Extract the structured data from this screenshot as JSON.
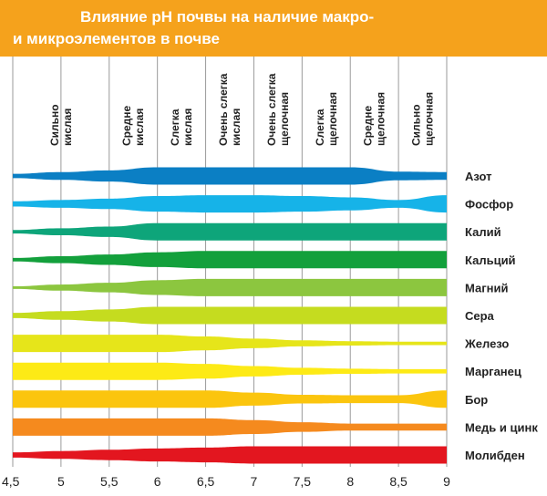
{
  "title_lines": [
    "Влияние pH почвы на наличие макро-",
    "и  микроэлементов в почве"
  ],
  "colors": {
    "header": "#f5a21c",
    "title_text": "#ffffff",
    "grid": "#9a9a9a",
    "text": "#222222"
  },
  "chart_data": {
    "type": "area",
    "xlim": [
      4.5,
      9
    ],
    "x_ticks": [
      "4,5",
      "5",
      "5,5",
      "6",
      "6,5",
      "7",
      "7,5",
      "8",
      "8,5",
      "9"
    ],
    "grid": "vertical",
    "categories": [
      "Сильно кислая",
      "Средне кислая",
      "Слегка кислая",
      "Очень слегка кислая",
      "Очень слегка щелочная",
      "Слегка щелочная",
      "Средне щелочная",
      "Сильно щелочная"
    ],
    "category_lines": [
      [
        "Сильно",
        "кислая"
      ],
      [
        "Средне",
        "кислая"
      ],
      [
        "Слегка",
        "кислая"
      ],
      [
        "Очень слегка",
        "кислая"
      ],
      [
        "Очень слегка",
        "щелочная"
      ],
      [
        "Слегка",
        "щелочная"
      ],
      [
        "Средне",
        "щелочная"
      ],
      [
        "Сильно",
        "щелочная"
      ]
    ],
    "category_bounds": [
      4.5,
      5.5,
      6,
      6.5,
      7,
      7.5,
      8,
      8.5,
      9
    ],
    "x": [
      4.5,
      5,
      5.5,
      6,
      6.5,
      7,
      7.5,
      8,
      8.5,
      9
    ],
    "series": [
      {
        "name": "Азот",
        "color": "#0b7fc4",
        "values": [
          0.25,
          0.45,
          0.65,
          1,
          1,
          1,
          1,
          1,
          0.5,
          0.45
        ]
      },
      {
        "name": "Фосфор",
        "color": "#16b3e8",
        "values": [
          0.3,
          0.45,
          0.6,
          0.9,
          1,
          1,
          0.9,
          0.75,
          0.45,
          1
        ]
      },
      {
        "name": "Калий",
        "color": "#0ea57a",
        "values": [
          0.2,
          0.4,
          0.6,
          1,
          1,
          1,
          1,
          1,
          1,
          1
        ]
      },
      {
        "name": "Кальций",
        "color": "#13a03c",
        "values": [
          0.2,
          0.4,
          0.6,
          0.85,
          1,
          1,
          1,
          1,
          1,
          1
        ]
      },
      {
        "name": "Магний",
        "color": "#8cc63f",
        "values": [
          0.15,
          0.35,
          0.55,
          0.85,
          1,
          1,
          1,
          1,
          1,
          1
        ]
      },
      {
        "name": "Сера",
        "color": "#c5dc1f",
        "values": [
          0.3,
          0.5,
          0.7,
          1,
          1,
          1,
          1,
          1,
          1,
          1
        ]
      },
      {
        "name": "Железо",
        "color": "#e6e51a",
        "values": [
          1,
          1,
          1,
          1,
          0.8,
          0.55,
          0.35,
          0.25,
          0.2,
          0.2
        ]
      },
      {
        "name": "Марганец",
        "color": "#fdea16",
        "values": [
          1,
          1,
          1,
          1,
          0.85,
          0.6,
          0.4,
          0.3,
          0.25,
          0.25
        ]
      },
      {
        "name": "Бор",
        "color": "#fbc50e",
        "values": [
          1,
          1,
          1,
          1,
          1,
          0.75,
          0.5,
          0.45,
          0.45,
          1
        ]
      },
      {
        "name": "Медь и цинк",
        "color": "#f58a1e",
        "values": [
          1,
          1,
          1,
          1,
          1,
          0.8,
          0.55,
          0.4,
          0.4,
          0.4
        ]
      },
      {
        "name": "Молибден",
        "color": "#e3161f",
        "values": [
          0.3,
          0.45,
          0.6,
          0.75,
          0.85,
          1,
          1,
          1,
          1,
          1
        ]
      }
    ]
  }
}
